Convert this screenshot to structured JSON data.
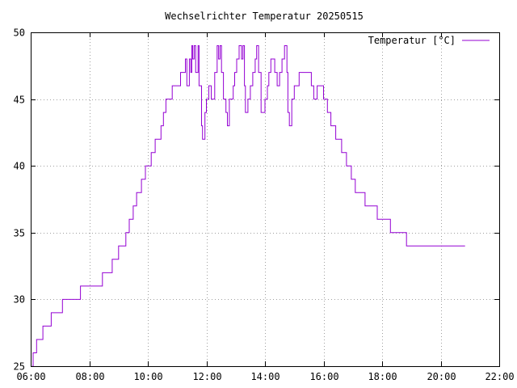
{
  "chart_data": {
    "type": "line",
    "title": "Wechselrichter Temperatur 20250515",
    "xlabel": "",
    "ylabel": "",
    "xlim": [
      "06:00",
      "22:00"
    ],
    "ylim": [
      25,
      50
    ],
    "x_ticks": [
      "06:00",
      "08:00",
      "10:00",
      "12:00",
      "14:00",
      "16:00",
      "18:00",
      "20:00",
      "22:00"
    ],
    "y_ticks": [
      25,
      30,
      35,
      40,
      45,
      50
    ],
    "grid": true,
    "legend_position": "top-right",
    "step": true,
    "series": [
      {
        "name": "Temperatur [°C]",
        "color": "#9400d3",
        "points": [
          [
            "06:03",
            25
          ],
          [
            "06:05",
            26
          ],
          [
            "06:12",
            27
          ],
          [
            "06:25",
            28
          ],
          [
            "06:42",
            29
          ],
          [
            "07:05",
            30
          ],
          [
            "07:42",
            31
          ],
          [
            "08:27",
            32
          ],
          [
            "08:47",
            33
          ],
          [
            "09:00",
            34
          ],
          [
            "09:15",
            35
          ],
          [
            "09:22",
            36
          ],
          [
            "09:30",
            37
          ],
          [
            "09:37",
            38
          ],
          [
            "09:47",
            39
          ],
          [
            "09:55",
            40
          ],
          [
            "10:07",
            41
          ],
          [
            "10:15",
            42
          ],
          [
            "10:27",
            43
          ],
          [
            "10:32",
            44
          ],
          [
            "10:37",
            45
          ],
          [
            "10:50",
            46
          ],
          [
            "11:07",
            47
          ],
          [
            "11:17",
            48
          ],
          [
            "11:20",
            46
          ],
          [
            "11:25",
            48
          ],
          [
            "11:28",
            47
          ],
          [
            "11:30",
            49
          ],
          [
            "11:32",
            48
          ],
          [
            "11:35",
            49
          ],
          [
            "11:38",
            47
          ],
          [
            "11:43",
            49
          ],
          [
            "11:45",
            46
          ],
          [
            "11:50",
            43
          ],
          [
            "11:52",
            42
          ],
          [
            "11:57",
            44
          ],
          [
            "12:00",
            45
          ],
          [
            "12:05",
            46
          ],
          [
            "12:10",
            45
          ],
          [
            "12:17",
            47
          ],
          [
            "12:22",
            49
          ],
          [
            "12:25",
            48
          ],
          [
            "12:28",
            49
          ],
          [
            "12:31",
            47
          ],
          [
            "12:35",
            45
          ],
          [
            "12:40",
            44
          ],
          [
            "12:43",
            43
          ],
          [
            "12:47",
            45
          ],
          [
            "12:55",
            46
          ],
          [
            "12:58",
            47
          ],
          [
            "13:02",
            48
          ],
          [
            "13:07",
            49
          ],
          [
            "13:12",
            48
          ],
          [
            "13:15",
            49
          ],
          [
            "13:18",
            46
          ],
          [
            "13:20",
            44
          ],
          [
            "13:25",
            45
          ],
          [
            "13:30",
            46
          ],
          [
            "13:35",
            47
          ],
          [
            "13:40",
            48
          ],
          [
            "13:43",
            49
          ],
          [
            "13:47",
            47
          ],
          [
            "13:52",
            44
          ],
          [
            "14:00",
            45
          ],
          [
            "14:05",
            46
          ],
          [
            "14:08",
            47
          ],
          [
            "14:12",
            48
          ],
          [
            "14:20",
            47
          ],
          [
            "14:25",
            46
          ],
          [
            "14:30",
            47
          ],
          [
            "14:35",
            48
          ],
          [
            "14:40",
            49
          ],
          [
            "14:45",
            47
          ],
          [
            "14:47",
            44
          ],
          [
            "14:50",
            43
          ],
          [
            "14:55",
            45
          ],
          [
            "15:00",
            46
          ],
          [
            "15:10",
            47
          ],
          [
            "15:35",
            46
          ],
          [
            "15:40",
            45
          ],
          [
            "15:47",
            46
          ],
          [
            "16:00",
            45
          ],
          [
            "16:08",
            44
          ],
          [
            "16:15",
            43
          ],
          [
            "16:25",
            42
          ],
          [
            "16:37",
            41
          ],
          [
            "16:47",
            40
          ],
          [
            "16:57",
            39
          ],
          [
            "17:05",
            38
          ],
          [
            "17:25",
            37
          ],
          [
            "17:50",
            36
          ],
          [
            "18:17",
            35
          ],
          [
            "18:50",
            34
          ],
          [
            "20:05",
            34
          ],
          [
            "20:50",
            34
          ]
        ]
      }
    ]
  }
}
